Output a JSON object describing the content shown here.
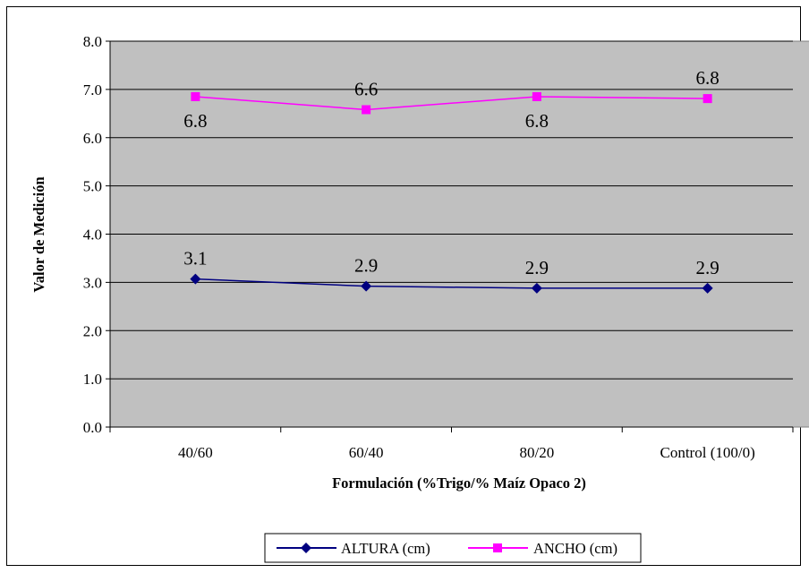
{
  "chart_data": {
    "type": "line",
    "categories": [
      "40/60",
      "60/40",
      "80/20",
      "Control (100/0)"
    ],
    "series": [
      {
        "name": "ALTURA (cm)",
        "values": [
          3.07,
          2.92,
          2.88,
          2.88
        ],
        "labels": [
          "3.1",
          "2.9",
          "2.9",
          "2.9"
        ],
        "color": "#000080",
        "marker": "diamond"
      },
      {
        "name": "ANCHO (cm)",
        "values": [
          6.85,
          6.58,
          6.85,
          6.81
        ],
        "labels": [
          "6.8",
          "6.6",
          "6.8",
          "6.8"
        ],
        "label_position": [
          "below",
          "above",
          "below",
          "above"
        ],
        "color": "#ff00ff",
        "marker": "square"
      }
    ],
    "xlabel": "Formulación (%Trigo/% Maíz Opaco 2)",
    "ylabel": "Valor de Medición",
    "ylim": [
      0,
      8
    ],
    "yticks": [
      "0.0",
      "1.0",
      "2.0",
      "3.0",
      "4.0",
      "5.0",
      "6.0",
      "7.0",
      "8.0"
    ],
    "grid": true,
    "plot_background": "#c0c0c0",
    "legend_position": "bottom"
  }
}
